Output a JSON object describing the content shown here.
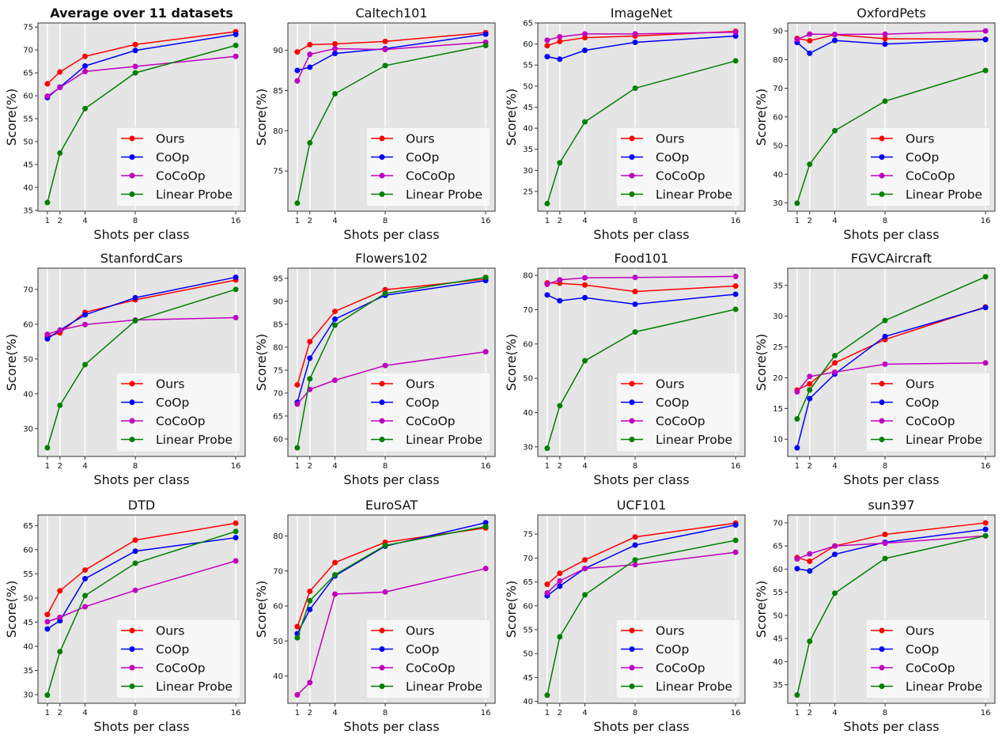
{
  "chart_data": {
    "type": "line",
    "grid_layout": "3 rows x 4 columns",
    "x": [
      1,
      2,
      4,
      8,
      16
    ],
    "xlabel": "Shots per class",
    "ylabel": "Score(%)",
    "xticks": [
      1,
      2,
      4,
      8,
      16
    ],
    "xlim": [
      0.25,
      16.75
    ],
    "grid": "vertical white lines at x ticks",
    "background": "#e5e5e5",
    "legend_placement": "lower-right",
    "series_styles": [
      {
        "name": "Ours",
        "color": "#ff0000"
      },
      {
        "name": "CoOp",
        "color": "#0000ff"
      },
      {
        "name": "CoCoOp",
        "color": "#bf00bf"
      },
      {
        "name": "Linear Probe",
        "color": "#008000"
      }
    ],
    "panels": [
      {
        "title": "Average over 11 datasets",
        "bold": true,
        "ylim": [
          34.8,
          75.9
        ],
        "yticks": [
          35,
          40,
          45,
          50,
          55,
          60,
          65,
          70,
          75
        ],
        "series": [
          {
            "name": "Ours",
            "values": [
              62.6,
              65.2,
              68.6,
              71.2,
              74.0
            ]
          },
          {
            "name": "CoOp",
            "values": [
              59.6,
              61.9,
              66.5,
              69.9,
              73.4
            ]
          },
          {
            "name": "CoCoOp",
            "values": [
              59.9,
              61.8,
              65.3,
              66.4,
              68.6
            ]
          },
          {
            "name": "Linear Probe",
            "values": [
              36.7,
              47.5,
              57.2,
              65.0,
              71.0
            ]
          }
        ]
      },
      {
        "title": "Caltech101",
        "ylim": [
          70.0,
          93.4
        ],
        "yticks": [
          75,
          80,
          85,
          90
        ],
        "series": [
          {
            "name": "Ours",
            "values": [
              89.8,
              90.7,
              90.8,
              91.1,
              92.2
            ]
          },
          {
            "name": "CoOp",
            "values": [
              87.5,
              87.9,
              89.6,
              90.2,
              92.0
            ]
          },
          {
            "name": "CoCoOp",
            "values": [
              86.2,
              89.5,
              90.2,
              90.1,
              91.0
            ]
          },
          {
            "name": "Linear Probe",
            "values": [
              71.0,
              78.5,
              84.6,
              88.1,
              90.6
            ]
          }
        ]
      },
      {
        "title": "ImageNet",
        "ylim": [
          20.3,
          65.0
        ],
        "yticks": [
          25,
          30,
          35,
          40,
          45,
          50,
          55,
          60,
          65
        ],
        "series": [
          {
            "name": "Ours",
            "values": [
              59.6,
              60.6,
              61.5,
              61.9,
              63.0
            ]
          },
          {
            "name": "CoOp",
            "values": [
              57.0,
              56.4,
              58.5,
              60.4,
              61.9
            ]
          },
          {
            "name": "CoCoOp",
            "values": [
              60.9,
              61.7,
              62.4,
              62.4,
              62.8
            ]
          },
          {
            "name": "Linear Probe",
            "values": [
              22.1,
              31.8,
              41.5,
              49.5,
              56.0
            ]
          }
        ]
      },
      {
        "title": "OxfordPets",
        "ylim": [
          27.1,
          92.8
        ],
        "yticks": [
          30,
          40,
          50,
          60,
          70,
          80,
          90
        ],
        "series": [
          {
            "name": "Ours",
            "values": [
              87.4,
              86.6,
              88.7,
              87.3,
              87.1
            ]
          },
          {
            "name": "CoOp",
            "values": [
              86.0,
              82.2,
              86.7,
              85.4,
              87.0
            ]
          },
          {
            "name": "CoCoOp",
            "values": [
              87.0,
              88.9,
              88.8,
              88.9,
              90.0
            ]
          },
          {
            "name": "Linear Probe",
            "values": [
              29.9,
              43.5,
              55.2,
              65.5,
              76.2
            ]
          }
        ]
      },
      {
        "title": "StanfordCars",
        "ylim": [
          22.0,
          76.1
        ],
        "yticks": [
          30,
          40,
          50,
          60,
          70
        ],
        "series": [
          {
            "name": "Ours",
            "values": [
              56.5,
              57.5,
              63.4,
              67.0,
              72.7
            ]
          },
          {
            "name": "CoOp",
            "values": [
              55.8,
              58.3,
              62.7,
              67.6,
              73.5
            ]
          },
          {
            "name": "CoCoOp",
            "values": [
              57.1,
              58.3,
              59.9,
              61.2,
              61.9
            ]
          },
          {
            "name": "Linear Probe",
            "values": [
              24.5,
              36.7,
              48.4,
              61.0,
              70.0
            ]
          }
        ]
      },
      {
        "title": "Flowers102",
        "ylim": [
          56.2,
          97.2
        ],
        "yticks": [
          60,
          65,
          70,
          75,
          80,
          85,
          90,
          95
        ],
        "series": [
          {
            "name": "Ours",
            "values": [
              71.8,
              81.2,
              87.8,
              92.5,
              94.8
            ]
          },
          {
            "name": "CoOp",
            "values": [
              68.0,
              77.6,
              86.1,
              91.3,
              94.5
            ]
          },
          {
            "name": "CoCoOp",
            "values": [
              67.6,
              70.8,
              72.8,
              76.0,
              79.0
            ]
          },
          {
            "name": "Linear Probe",
            "values": [
              58.1,
              73.1,
              84.8,
              91.7,
              95.2
            ]
          }
        ]
      },
      {
        "title": "Food101",
        "ylim": [
          27.2,
          82.1
        ],
        "yticks": [
          30,
          40,
          50,
          60,
          70,
          80
        ],
        "series": [
          {
            "name": "Ours",
            "values": [
              77.8,
              77.7,
              77.2,
              75.3,
              76.9
            ]
          },
          {
            "name": "CoOp",
            "values": [
              74.3,
              72.6,
              73.5,
              71.6,
              74.5
            ]
          },
          {
            "name": "CoCoOp",
            "values": [
              77.4,
              78.7,
              79.3,
              79.4,
              79.7
            ]
          },
          {
            "name": "Linear Probe",
            "values": [
              29.6,
              42.0,
              55.1,
              63.5,
              70.1
            ]
          }
        ]
      },
      {
        "title": "FGVCAircraft",
        "ylim": [
          7.2,
          37.8
        ],
        "yticks": [
          10,
          15,
          20,
          25,
          30,
          35
        ],
        "series": [
          {
            "name": "Ours",
            "values": [
              18.0,
              19.0,
              22.4,
              26.2,
              31.5
            ]
          },
          {
            "name": "CoOp",
            "values": [
              8.6,
              16.6,
              20.6,
              26.7,
              31.4
            ]
          },
          {
            "name": "CoCoOp",
            "values": [
              17.7,
              20.2,
              20.9,
              22.2,
              22.4
            ]
          },
          {
            "name": "Linear Probe",
            "values": [
              13.3,
              18.0,
              23.6,
              29.3,
              36.4
            ]
          }
        ]
      },
      {
        "title": "DTD",
        "ylim": [
          28.2,
          67.2
        ],
        "yticks": [
          30,
          35,
          40,
          45,
          50,
          55,
          60,
          65
        ],
        "series": [
          {
            "name": "Ours",
            "values": [
              46.6,
              51.5,
              55.8,
              62.0,
              65.5
            ]
          },
          {
            "name": "CoOp",
            "values": [
              43.6,
              45.3,
              54.0,
              59.7,
              62.5
            ]
          },
          {
            "name": "CoCoOp",
            "values": [
              45.1,
              46.0,
              48.2,
              51.6,
              57.7
            ]
          },
          {
            "name": "Linear Probe",
            "values": [
              29.9,
              38.9,
              50.5,
              57.2,
              63.8
            ]
          }
        ]
      },
      {
        "title": "EuroSAT",
        "ylim": [
          32.2,
          86.0
        ],
        "yticks": [
          40,
          50,
          60,
          70,
          80
        ],
        "series": [
          {
            "name": "Ours",
            "values": [
              54.1,
              64.2,
              72.4,
              78.2,
              82.3
            ]
          },
          {
            "name": "CoOp",
            "values": [
              52.1,
              59.0,
              68.6,
              77.1,
              83.8
            ]
          },
          {
            "name": "CoCoOp",
            "values": [
              34.6,
              38.1,
              63.4,
              64.0,
              70.7
            ]
          },
          {
            "name": "Linear Probe",
            "values": [
              50.9,
              61.5,
              68.9,
              77.3,
              82.7
            ]
          }
        ]
      },
      {
        "title": "UCF101",
        "ylim": [
          39.6,
          79.0
        ],
        "yticks": [
          40,
          45,
          50,
          55,
          60,
          65,
          70,
          75
        ],
        "series": [
          {
            "name": "Ours",
            "values": [
              64.5,
              66.8,
              69.6,
              74.4,
              77.3
            ]
          },
          {
            "name": "CoOp",
            "values": [
              62.1,
              64.1,
              67.8,
              72.7,
              76.9
            ]
          },
          {
            "name": "CoCoOp",
            "values": [
              62.7,
              65.2,
              67.8,
              68.6,
              71.2
            ]
          },
          {
            "name": "Linear Probe",
            "values": [
              41.3,
              53.5,
              62.3,
              69.6,
              73.7
            ]
          }
        ]
      },
      {
        "title": "sun397",
        "ylim": [
          31.0,
          71.7
        ],
        "yticks": [
          35,
          40,
          45,
          50,
          55,
          60,
          65,
          70
        ],
        "series": [
          {
            "name": "Ours",
            "values": [
              62.5,
              61.7,
              65.0,
              67.5,
              70.0
            ]
          },
          {
            "name": "CoOp",
            "values": [
              60.1,
              59.6,
              63.2,
              65.8,
              68.6
            ]
          },
          {
            "name": "CoCoOp",
            "values": [
              62.2,
              63.3,
              65.0,
              65.6,
              67.2
            ]
          },
          {
            "name": "Linear Probe",
            "values": [
              32.8,
              44.4,
              54.8,
              62.3,
              67.2
            ]
          }
        ]
      }
    ]
  }
}
